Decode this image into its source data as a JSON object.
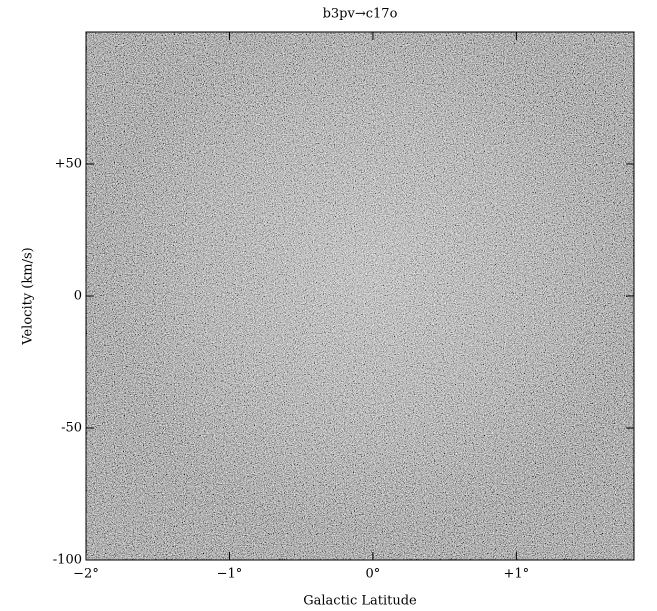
{
  "chart_data": {
    "type": "heatmap",
    "title": "b3pv→c17o",
    "x_label": "Galactic Latitude",
    "y_label": "Velocity (km/s)",
    "xlim": [
      -2,
      1.82
    ],
    "ylim": [
      -100,
      100
    ],
    "xticks": [
      {
        "value": -2,
        "label": "−2°"
      },
      {
        "value": -1,
        "label": "−1°"
      },
      {
        "value": 0,
        "label": "0°"
      },
      {
        "value": 1,
        "label": "+1°"
      }
    ],
    "yticks": [
      -100,
      -50,
      0,
      {
        "value": 50,
        "label": "+50"
      }
    ],
    "colormap": "gray"
  }
}
